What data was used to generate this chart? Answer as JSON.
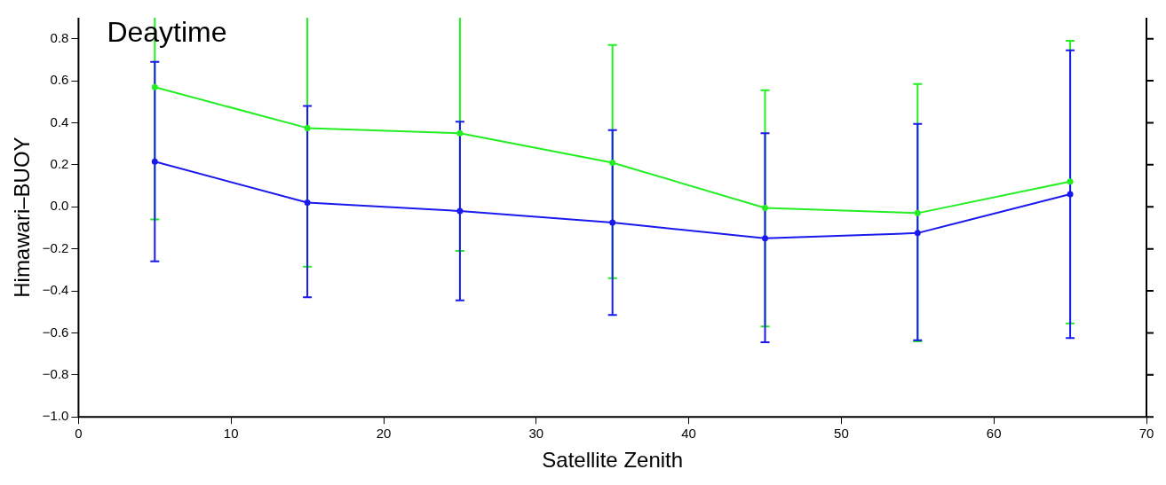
{
  "chart_data": {
    "type": "line",
    "title": "Deaytime",
    "xlabel": "Satellite Zenith",
    "ylabel": "Himawari–BUOY",
    "xlim": [
      0,
      70
    ],
    "xticks": [
      0,
      10,
      20,
      30,
      40,
      50,
      60,
      70
    ],
    "ylim": [
      -1,
      0.9
    ],
    "yticks": [
      {
        "value": -1,
        "label": "−1.0"
      },
      {
        "value": -0.8,
        "label": "−0.8"
      },
      {
        "value": -0.6,
        "label": "−0.6"
      },
      {
        "value": -0.4,
        "label": "−0.4"
      },
      {
        "value": -0.2,
        "label": "−0.2"
      },
      {
        "value": 0,
        "label": "0.0"
      },
      {
        "value": 0.2,
        "label": "0.2"
      },
      {
        "value": 0.4,
        "label": "0.4"
      },
      {
        "value": 0.6,
        "label": "0.6"
      },
      {
        "value": 0.8,
        "label": "0.8"
      }
    ],
    "x": [
      5,
      15,
      25,
      35,
      45,
      55,
      65
    ],
    "series": [
      {
        "color": "#22ee22",
        "values": [
          0.57,
          0.375,
          0.35,
          0.21,
          -0.005,
          -0.03,
          0.12
        ],
        "errors": [
          [
            -0.06,
            0.9
          ],
          [
            -0.285,
            0.9
          ],
          [
            -0.21,
            0.9
          ],
          [
            -0.34,
            0.77
          ],
          [
            -0.57,
            0.555
          ],
          [
            -0.64,
            0.585
          ],
          [
            -0.555,
            0.79
          ]
        ]
      },
      {
        "color": "#1a1aee",
        "values": [
          0.215,
          0.02,
          -0.02,
          -0.075,
          -0.15,
          -0.125,
          0.06
        ],
        "errors": [
          [
            -0.26,
            0.69
          ],
          [
            -0.43,
            0.48
          ],
          [
            -0.445,
            0.405
          ],
          [
            -0.515,
            0.365
          ],
          [
            -0.645,
            0.35
          ],
          [
            -0.635,
            0.395
          ],
          [
            -0.625,
            0.745
          ]
        ]
      }
    ],
    "grid": false,
    "legend": false,
    "marker": "circle",
    "line_style": "solid"
  }
}
